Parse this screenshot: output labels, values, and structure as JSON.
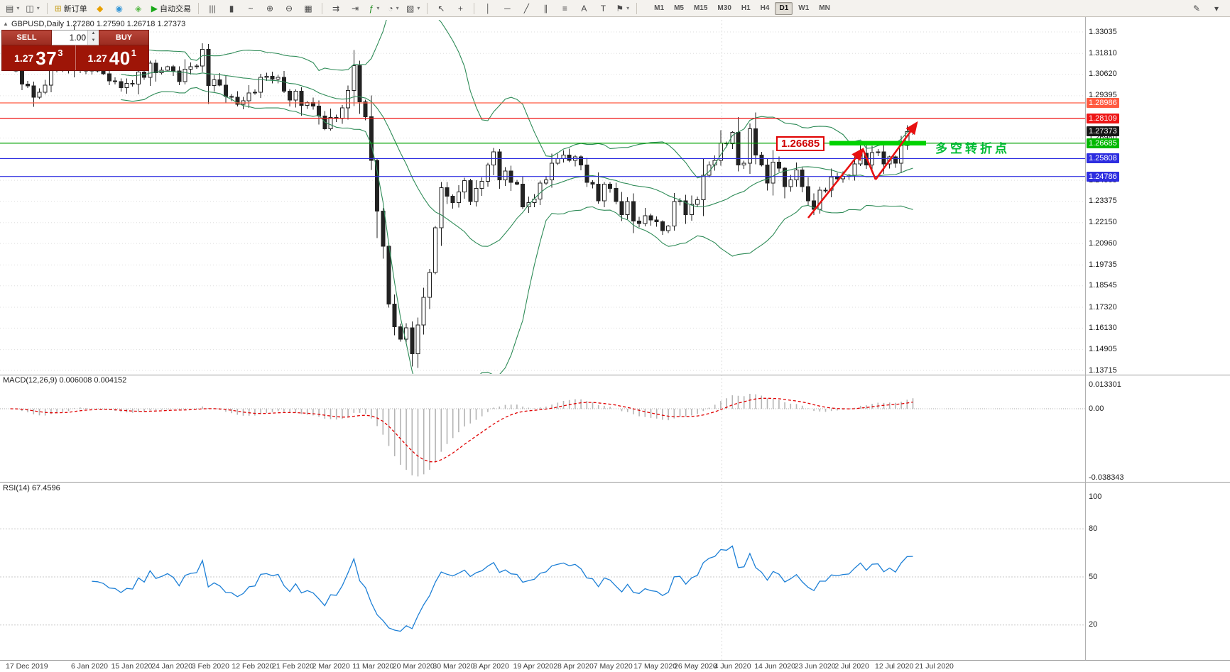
{
  "toolbar": {
    "buttons": [
      {
        "name": "new-chart-button",
        "glyph": "▤",
        "dropdown": true
      },
      {
        "name": "profiles-button",
        "glyph": "◫",
        "dropdown": true
      },
      {
        "name": "sep"
      },
      {
        "name": "new-order-button",
        "glyph": "⊞",
        "label": "新订单",
        "color": "#c8a020"
      },
      {
        "name": "mql5-market-button",
        "glyph": "◆",
        "color": "#e8a000"
      },
      {
        "name": "economic-calendar-button",
        "glyph": "◉",
        "color": "#3898d8"
      },
      {
        "name": "community-button",
        "glyph": "◈",
        "color": "#58b848"
      },
      {
        "name": "autotrading-button",
        "glyph": "▶",
        "label": "自动交易",
        "color": "#18a818"
      },
      {
        "name": "sep"
      },
      {
        "name": "bar-chart-button",
        "glyph": "|||"
      },
      {
        "name": "candlestick-chart-button",
        "glyph": "▮"
      },
      {
        "name": "line-chart-button",
        "glyph": "~"
      },
      {
        "name": "zoom-in-button",
        "glyph": "⊕"
      },
      {
        "name": "zoom-out-button",
        "glyph": "⊖"
      },
      {
        "name": "tile-windows-button",
        "glyph": "▦"
      },
      {
        "name": "sep"
      },
      {
        "name": "auto-scroll-button",
        "glyph": "⇉"
      },
      {
        "name": "chart-shift-button",
        "glyph": "⇥"
      },
      {
        "name": "indicators-button",
        "glyph": "ƒ",
        "dropdown": true,
        "color": "#188818"
      },
      {
        "name": "periods-button",
        "glyph": "◔",
        "dropdown": true
      },
      {
        "name": "templates-button",
        "glyph": "▧",
        "dropdown": true
      },
      {
        "name": "sep"
      },
      {
        "name": "cursor-button",
        "glyph": "↖"
      },
      {
        "name": "crosshair-button",
        "glyph": "+"
      },
      {
        "name": "sep"
      },
      {
        "name": "vertical-line-button",
        "glyph": "│"
      },
      {
        "name": "horizontal-line-button",
        "glyph": "─"
      },
      {
        "name": "trendline-button",
        "glyph": "╱"
      },
      {
        "name": "equidistant-channel-button",
        "glyph": "∥"
      },
      {
        "name": "fibonacci-button",
        "glyph": "≡"
      },
      {
        "name": "text-button",
        "glyph": "A"
      },
      {
        "name": "text-label-button",
        "glyph": "T"
      },
      {
        "name": "arrows-button",
        "glyph": "⚑",
        "dropdown": true
      },
      {
        "name": "sep"
      }
    ],
    "timeframes": {
      "items": [
        "M1",
        "M5",
        "M15",
        "M30",
        "H1",
        "H4",
        "D1",
        "W1",
        "MN"
      ],
      "active": "D1"
    },
    "right_buttons": [
      {
        "name": "edit-toolbar-button",
        "glyph": "✎"
      },
      {
        "name": "toolbar-collapse-button",
        "glyph": "▾"
      }
    ]
  },
  "chart": {
    "symbol_header": "GBPUSD,Daily  1.27280 1.27590 1.26718 1.27373",
    "collapse_icon": "▲"
  },
  "quote_panel": {
    "sell_label": "SELL",
    "buy_label": "BUY",
    "volume": "1.00",
    "sell_price_big": "1.27",
    "sell_price_pips": "37",
    "sell_price_sup": "3",
    "buy_price_big": "1.27",
    "buy_price_pips": "40",
    "buy_price_sup": "1"
  },
  "price_axis": {
    "grid_labels": [
      "1.33035",
      "1.31810",
      "1.30620",
      "1.29395",
      "1.26980",
      "1.24565",
      "1.23375",
      "1.22150",
      "1.20960",
      "1.19735",
      "1.18545",
      "1.17320",
      "1.16130",
      "1.14905",
      "1.13715"
    ],
    "flags": [
      {
        "text": "1.28986",
        "bg": "#ff5a40",
        "name": "price-flag-resistance-upper"
      },
      {
        "text": "1.28109",
        "bg": "#ee1515",
        "name": "price-flag-resistance-lower"
      },
      {
        "text": "1.27373",
        "bg": "#161616",
        "name": "current-price-label"
      },
      {
        "text": "1.26685",
        "bg": "#00b800",
        "name": "price-flag-pivot"
      },
      {
        "text": "1.25808",
        "bg": "#2d2de0",
        "name": "price-flag-support-upper"
      },
      {
        "text": "1.24786",
        "bg": "#2d2de0",
        "name": "price-flag-support-lower"
      }
    ]
  },
  "hlines": [
    {
      "price": 1.28986,
      "color": "#ff5a40"
    },
    {
      "price": 1.28109,
      "color": "#ee1515"
    },
    {
      "price": 1.26685,
      "color": "#00a000"
    },
    {
      "price": 1.25808,
      "color": "#2d2de0"
    },
    {
      "price": 1.24786,
      "color": "#2d2de0"
    }
  ],
  "annotations": {
    "price_flag": "1.26685",
    "turning_point_text": "多空转折点",
    "colors": {
      "flag": "#e00000",
      "band": "#00d200",
      "text": "#00bb33",
      "arrow": "#e81010"
    }
  },
  "panels": {
    "macd_header": "MACD(12,26,9) 0.006008 0.004152",
    "macd_labels": [
      "0.013301",
      "0.00",
      "-0.038343"
    ],
    "rsi_header": "RSI(14) 67.4596",
    "rsi_labels": [
      "100",
      "80",
      "50",
      "20"
    ],
    "rsi_levels": [
      80,
      50,
      20
    ]
  },
  "chart_data": {
    "type": "candlestick",
    "symbol": "GBPUSD",
    "timeframe": "Daily",
    "ohlc_current": {
      "open": "1.27280",
      "high": "1.27590",
      "low": "1.26718",
      "close": "1.27373"
    },
    "ylim": [
      1.13715,
      1.33035
    ],
    "indicators": [
      {
        "name": "Bollinger Bands",
        "params": "20,2",
        "color": "#2e8b57"
      },
      {
        "name": "MACD",
        "params": "12,26,9",
        "main": 0.006008,
        "signal": 0.004152,
        "scale_max": 0.013301,
        "scale_min": -0.038343
      },
      {
        "name": "RSI",
        "params": "14",
        "value": 67.4596,
        "levels": [
          80,
          50,
          20
        ]
      }
    ],
    "date_ticks": [
      "17 Dec 2019",
      "6 Jan 2020",
      "15 Jan 2020",
      "24 Jan 2020",
      "3 Feb 2020",
      "12 Feb 2020",
      "21 Feb 2020",
      "2 Mar 2020",
      "11 Mar 2020",
      "20 Mar 2020",
      "30 Mar 2020",
      "8 Apr 2020",
      "19 Apr 2020",
      "28 Apr 2020",
      "7 May 2020",
      "17 May 2020",
      "26 May 2020",
      "4 Jun 2020",
      "14 Jun 2020",
      "23 Jun 2020",
      "2 Jul 2020",
      "12 Jul 2020",
      "21 Jul 2020"
    ],
    "closes": [
      1.3125,
      1.308,
      1.3005,
      1.2995,
      1.293,
      1.296,
      1.3,
      1.31,
      1.311,
      1.309,
      1.3115,
      1.3257,
      1.3145,
      1.308,
      1.3085,
      1.308,
      1.3065,
      1.3025,
      1.302,
      1.2985,
      1.301,
      1.3005,
      1.3075,
      1.3045,
      1.3125,
      1.307,
      1.3085,
      1.3105,
      1.308,
      1.302,
      1.309,
      1.3105,
      1.311,
      1.3205,
      1.2997,
      1.303,
      1.3,
      1.2934,
      1.293,
      1.289,
      1.291,
      1.2955,
      1.296,
      1.3045,
      1.305,
      1.3035,
      1.3045,
      1.2965,
      1.2915,
      1.2965,
      1.2885,
      1.29,
      1.288,
      1.2823,
      1.275,
      1.2815,
      1.281,
      1.287,
      1.297,
      1.3112,
      1.2905,
      1.282,
      1.257,
      1.228,
      1.208,
      1.175,
      1.162,
      1.155,
      1.1615,
      1.1466,
      1.163,
      1.1788,
      1.193,
      1.2185,
      1.2415,
      1.2365,
      1.233,
      1.239,
      1.2455,
      1.2335,
      1.241,
      1.245,
      1.2545,
      1.262,
      1.246,
      1.251,
      1.2445,
      1.2435,
      1.2305,
      1.233,
      1.235,
      1.244,
      1.246,
      1.2555,
      1.258,
      1.26,
      1.257,
      1.259,
      1.2545,
      1.2445,
      1.2435,
      1.234,
      1.2435,
      1.241,
      1.2335,
      1.226,
      1.2335,
      1.2225,
      1.221,
      1.2255,
      1.223,
      1.222,
      1.217,
      1.2195,
      1.2335,
      1.234,
      1.226,
      1.232,
      1.2345,
      1.2485,
      1.2545,
      1.257,
      1.267,
      1.2665,
      1.273,
      1.2545,
      1.2555,
      1.275,
      1.26,
      1.2545,
      1.244,
      1.256,
      1.2525,
      1.242,
      1.246,
      1.2515,
      1.242,
      1.234,
      1.229,
      1.24,
      1.24,
      1.2475,
      1.2465,
      1.248,
      1.2485,
      1.255,
      1.261,
      1.2545,
      1.2615,
      1.262,
      1.255,
      1.259,
      1.2555,
      1.2655,
      1.2735,
      1.27373
    ]
  }
}
